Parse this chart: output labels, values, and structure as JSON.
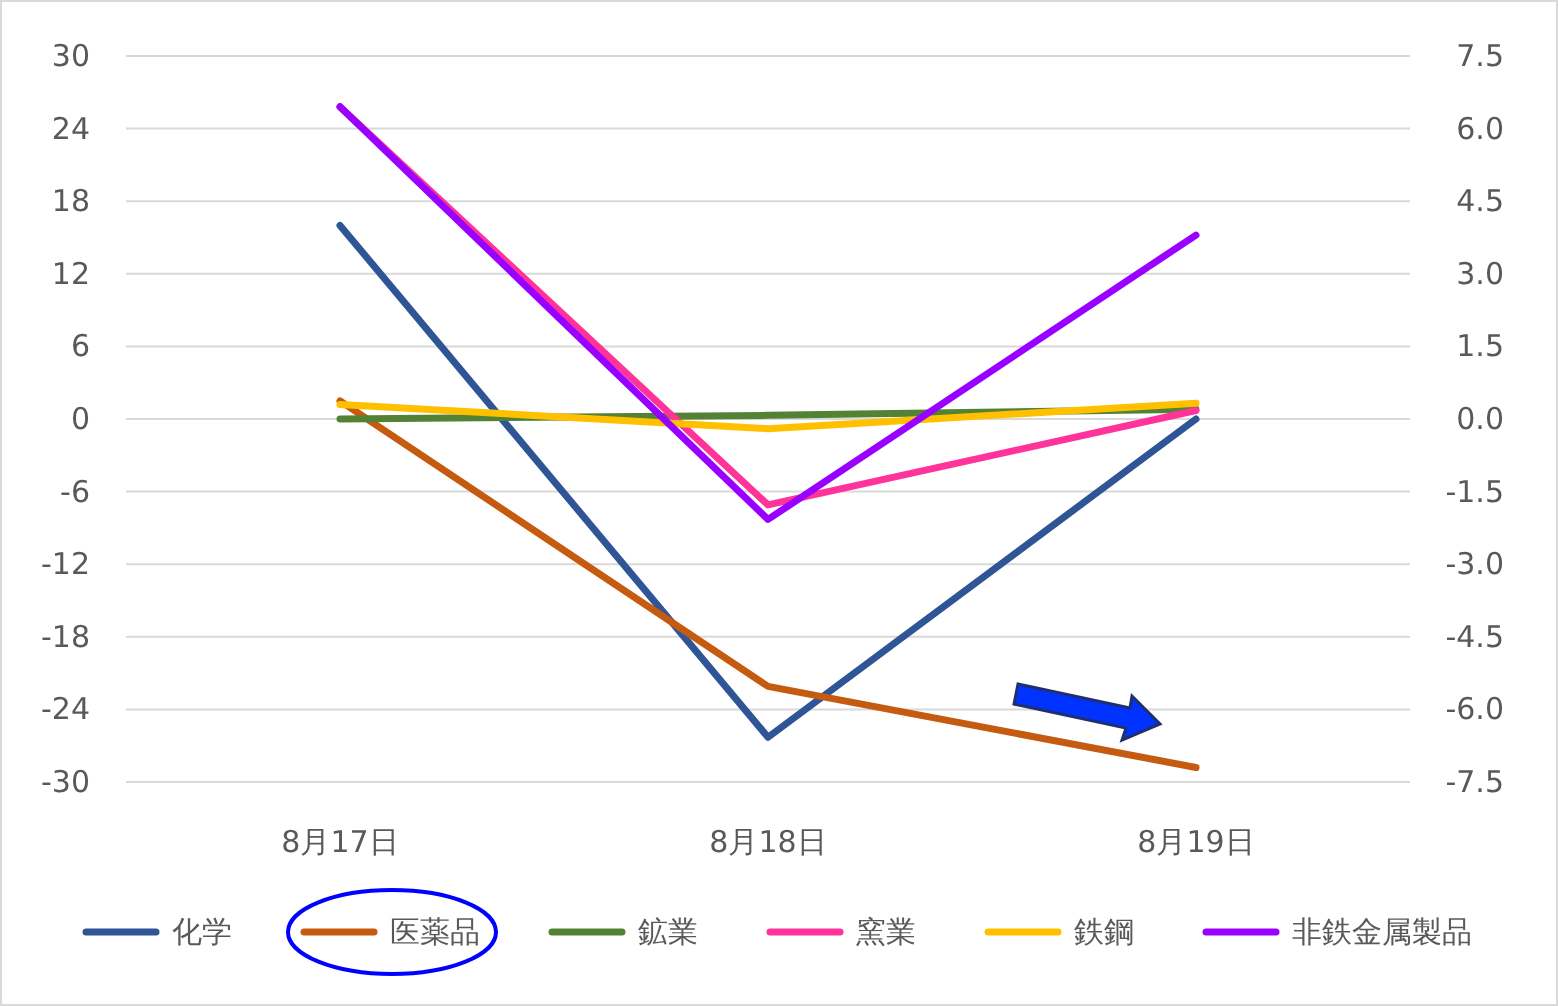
{
  "chart_data": {
    "type": "line",
    "categories": [
      "8月17日",
      "8月18日",
      "8月19日"
    ],
    "series": [
      {
        "name": "化学",
        "color": "#2f5597",
        "values": [
          16,
          -26.3,
          0
        ]
      },
      {
        "name": "医薬品",
        "color": "#c55a11",
        "values": [
          1.5,
          -22.1,
          -28.8
        ]
      },
      {
        "name": "鉱業",
        "color": "#548235",
        "values": [
          0,
          0.3,
          0.8
        ]
      },
      {
        "name": "窯業",
        "color": "#ff3399",
        "values": [
          25.8,
          -7.1,
          0.7
        ]
      },
      {
        "name": "鉄鋼",
        "color": "#ffc000",
        "values": [
          1.2,
          -0.8,
          1.3
        ]
      },
      {
        "name": "非鉄金属製品",
        "color": "#9900ff",
        "values": [
          25.8,
          -8.3,
          15.2
        ]
      }
    ],
    "ylim": [
      -30,
      30
    ],
    "yticks": [
      -30,
      -24,
      -18,
      -12,
      -6,
      0,
      6,
      12,
      18,
      24,
      30
    ],
    "y2lim": [
      -7.5,
      7.5
    ],
    "y2ticks": [
      {
        "value": -7.5,
        "label": "-7.5"
      },
      {
        "value": -6,
        "label": "-6.0"
      },
      {
        "value": -4.5,
        "label": "-4.5"
      },
      {
        "value": -3,
        "label": "-3.0"
      },
      {
        "value": -1.5,
        "label": "-1.5"
      },
      {
        "value": 0,
        "label": "0.0"
      },
      {
        "value": 1.5,
        "label": "1.5"
      },
      {
        "value": 3,
        "label": "3.0"
      },
      {
        "value": 4.5,
        "label": "4.5"
      },
      {
        "value": 6,
        "label": "6.0"
      },
      {
        "value": 7.5,
        "label": "7.5"
      }
    ],
    "grid": "y",
    "legend": "bottom",
    "marker": "none",
    "line_style": "solid"
  }
}
